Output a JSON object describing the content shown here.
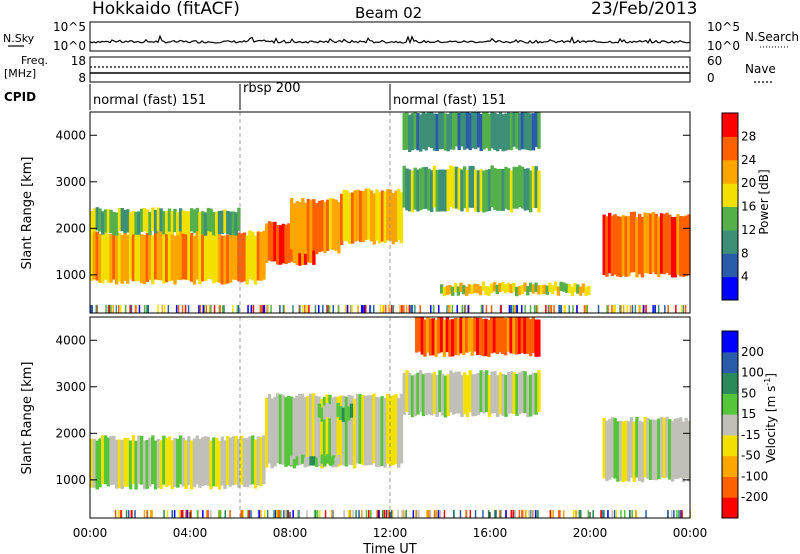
{
  "header": {
    "station": "Hokkaido (fitACF)",
    "beam": "Beam 02",
    "date": "23/Feb/2013"
  },
  "noise_panel": {
    "left_label": "N.Sky",
    "right_label": "N.Search",
    "left_ticks": [
      "10^5",
      "10^0"
    ],
    "right_ticks": [
      "10^5",
      "10^0"
    ]
  },
  "freq_panel": {
    "left_label_1": "Freq.",
    "left_label_2": "[MHz]",
    "right_label": "Nave",
    "left_ticks": [
      "18",
      "8"
    ],
    "right_ticks": [
      "60",
      "0"
    ]
  },
  "cpid": {
    "label": "CPID",
    "segments": [
      {
        "name": "normal (fast) 151",
        "start_hour": 0,
        "end_hour": 6
      },
      {
        "name": "rbsp 200",
        "start_hour": 6,
        "end_hour": 12
      },
      {
        "name": "normal (fast) 151",
        "start_hour": 12,
        "end_hour": 24
      }
    ]
  },
  "chart_data": [
    {
      "type": "heatmap",
      "name": "power",
      "ylabel": "Slant Range [km]",
      "ylim": [
        180,
        4500
      ],
      "yticks": [
        "1000",
        "2000",
        "3000",
        "4000"
      ],
      "xlim_hours": [
        0,
        24
      ],
      "colorbar": {
        "label": "Power [dB]",
        "tick_labels": [
          "4",
          "8",
          "12",
          "16",
          "20",
          "24",
          "28"
        ],
        "colors": [
          "#0000ff",
          "#2a5caa",
          "#3d8f78",
          "#55b04a",
          "#f2e000",
          "#ffa500",
          "#ff6000",
          "#ff0000"
        ]
      },
      "regions": [
        {
          "t0": 0,
          "t1": 7,
          "r0": 1050,
          "r1": 1650,
          "level": 7
        },
        {
          "t0": 0,
          "t1": 7,
          "r0": 850,
          "r1": 1900,
          "level": 5
        },
        {
          "t0": 0,
          "t1": 6,
          "r0": 1900,
          "r1": 2400,
          "level": 3
        },
        {
          "t0": 7,
          "t1": 9,
          "r0": 1250,
          "r1": 2100,
          "level": 6
        },
        {
          "t0": 8,
          "t1": 10,
          "r0": 1500,
          "r1": 2600,
          "level": 5
        },
        {
          "t0": 10,
          "t1": 12.5,
          "r0": 1700,
          "r1": 2800,
          "level": 5
        },
        {
          "t0": 12.5,
          "t1": 18,
          "r0": 2400,
          "r1": 3300,
          "level": 3
        },
        {
          "t0": 12.5,
          "t1": 18,
          "r0": 3700,
          "r1": 4500,
          "level": 2
        },
        {
          "t0": 20.5,
          "t1": 24,
          "r0": 1000,
          "r1": 2300,
          "level": 6
        },
        {
          "t0": 14,
          "t1": 20,
          "r0": 600,
          "r1": 800,
          "level": 4
        }
      ]
    },
    {
      "type": "heatmap",
      "name": "velocity",
      "ylabel": "Slant Range [km]",
      "ylim": [
        180,
        4500
      ],
      "yticks": [
        "1000",
        "2000",
        "3000",
        "4000"
      ],
      "xlabel": "Time UT",
      "xticks": [
        "00:00",
        "04:00",
        "08:00",
        "12:00",
        "16:00",
        "20:00",
        "00:00"
      ],
      "xlim_hours": [
        0,
        24
      ],
      "colorbar": {
        "label_main": "Velocity [m s",
        "label_exp": "-1",
        "label_close": "]",
        "tick_labels": [
          "-200",
          "-100",
          "-50",
          "-15",
          "15",
          "50",
          "100",
          "200"
        ],
        "colors": [
          "#ff0000",
          "#ff6000",
          "#ffa500",
          "#f2e000",
          "#c0c0b8",
          "#55c53a",
          "#2a8a5a",
          "#2a5caa",
          "#0000ff"
        ]
      },
      "regions": [
        {
          "t0": 0,
          "t1": 7,
          "r0": 850,
          "r1": 1900,
          "level": 4
        },
        {
          "t0": 7,
          "t1": 12.5,
          "r0": 1300,
          "r1": 2800,
          "level": 4
        },
        {
          "t0": 12.5,
          "t1": 18,
          "r0": 2400,
          "r1": 3300,
          "level": 4
        },
        {
          "t0": 20.5,
          "t1": 24,
          "r0": 1000,
          "r1": 2300,
          "level": 4
        },
        {
          "t0": 8,
          "t1": 10,
          "r0": 1300,
          "r1": 1500,
          "level": 5
        },
        {
          "t0": 9,
          "t1": 10.5,
          "r0": 2300,
          "r1": 2600,
          "level": 5
        },
        {
          "t0": 13,
          "t1": 18,
          "r0": 3700,
          "r1": 4500,
          "level": 1
        }
      ]
    }
  ]
}
